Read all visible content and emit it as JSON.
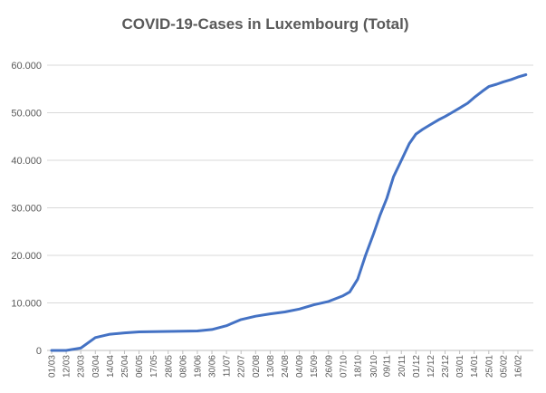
{
  "chart_data": {
    "type": "line",
    "title": "COVID-19-Cases in Luxembourg (Total)",
    "xlabel": "",
    "ylabel": "",
    "ylim": [
      0,
      60000
    ],
    "y_ticks": [
      0,
      10000,
      20000,
      30000,
      40000,
      50000,
      60000
    ],
    "y_tick_labels": [
      "0",
      "10.000",
      "20.000",
      "30.000",
      "40.000",
      "50.000",
      "60.000"
    ],
    "grid": true,
    "legend": "none",
    "x_tick_labels": [
      "01/03",
      "12/03",
      "23/03",
      "03/04",
      "14/04",
      "25/04",
      "06/05",
      "17/05",
      "28/05",
      "08/06",
      "19/06",
      "30/06",
      "11/07",
      "22/07",
      "02/08",
      "13/08",
      "24/08",
      "04/09",
      "15/09",
      "26/09",
      "07/10",
      "18/10",
      "30/10",
      "09/11",
      "20/11",
      "01/12",
      "12/12",
      "23/12",
      "03/01",
      "14/01",
      "25/01",
      "05/02",
      "16/02"
    ],
    "series": [
      {
        "color": "#4472c4",
        "x": [
          "01/03",
          "12/03",
          "23/03",
          "03/04",
          "14/04",
          "25/04",
          "06/05",
          "17/05",
          "28/05",
          "08/06",
          "19/06",
          "30/06",
          "11/07",
          "22/07",
          "02/08",
          "13/08",
          "24/08",
          "04/09",
          "15/09",
          "26/09",
          "07/10",
          "12/10",
          "18/10",
          "24/10",
          "30/10",
          "04/11",
          "09/11",
          "14/11",
          "20/11",
          "26/11",
          "01/12",
          "06/12",
          "12/12",
          "18/12",
          "23/12",
          "28/12",
          "03/01",
          "09/01",
          "14/01",
          "20/01",
          "25/01",
          "31/01",
          "05/02",
          "11/02",
          "16/02",
          "22/02"
        ],
        "values": [
          0,
          0,
          500,
          2700,
          3400,
          3700,
          3900,
          3950,
          4000,
          4050,
          4100,
          4400,
          5200,
          6500,
          7200,
          7700,
          8100,
          8700,
          9600,
          10300,
          11500,
          12300,
          15000,
          20000,
          24500,
          28500,
          32000,
          36500,
          40000,
          43500,
          45500,
          46500,
          47500,
          48500,
          49200,
          50000,
          51000,
          52000,
          53200,
          54500,
          55500,
          56000,
          56500,
          57000,
          57500,
          58000
        ]
      }
    ]
  }
}
